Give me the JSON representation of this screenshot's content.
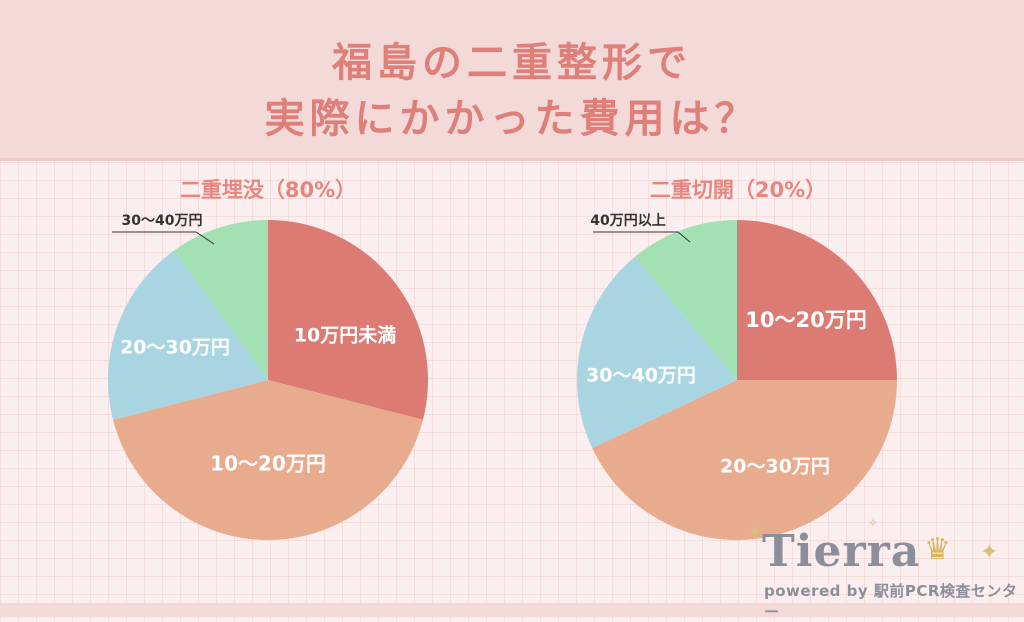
{
  "header": {
    "title_line1": "福島の二重整形で",
    "title_line2": "実際にかかった費用は？"
  },
  "chart_data": [
    {
      "type": "pie",
      "title": "二重埋没（80%）",
      "slices": [
        {
          "label": "10万円未満",
          "value": 29,
          "color": "#dc7a74"
        },
        {
          "label": "10〜20万円",
          "value": 42,
          "color": "#e8ab8d"
        },
        {
          "label": "20〜30万円",
          "value": 19,
          "color": "#a9d5e3"
        },
        {
          "label": "30〜40万円",
          "value": 10,
          "color": "#a3e0b3"
        }
      ]
    },
    {
      "type": "pie",
      "title": "二重切開（20%）",
      "slices": [
        {
          "label": "10〜20万円",
          "value": 25,
          "color": "#dc7a74"
        },
        {
          "label": "20〜30万円",
          "value": 43,
          "color": "#e8ab8d"
        },
        {
          "label": "30〜40万円",
          "value": 21,
          "color": "#a9d5e3"
        },
        {
          "label": "40万円以上",
          "value": 11,
          "color": "#a3e0b3"
        }
      ]
    }
  ],
  "logo": {
    "word": "Tierra",
    "tagline": "powered by 駅前PCR検査センター"
  }
}
